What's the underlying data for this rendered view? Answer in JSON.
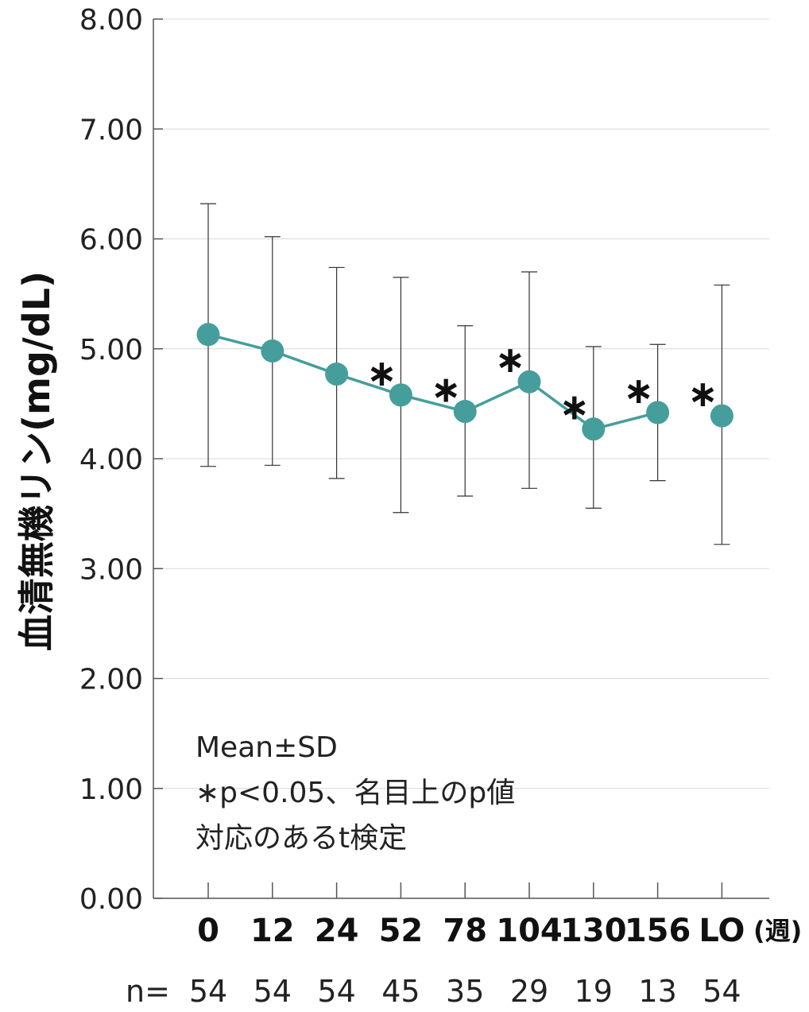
{
  "chart_data": {
    "type": "line",
    "ylabel": "血清無機リン(mg/dL)",
    "ylim": [
      0,
      8
    ],
    "yticks": [
      "0.00",
      "1.00",
      "2.00",
      "3.00",
      "4.00",
      "5.00",
      "6.00",
      "7.00",
      "8.00"
    ],
    "categories": [
      "0",
      "12",
      "24",
      "52",
      "78",
      "104",
      "130",
      "156",
      "LO"
    ],
    "x_unit": "(週)",
    "n_label": "n=",
    "n_values": [
      "54",
      "54",
      "54",
      "45",
      "35",
      "29",
      "19",
      "13",
      "54"
    ],
    "series": [
      {
        "values": [
          5.13,
          4.98,
          4.77,
          4.58,
          4.43,
          4.7,
          4.27,
          4.42,
          4.39
        ],
        "sd_upper": [
          6.32,
          6.02,
          5.74,
          5.65,
          5.21,
          5.7,
          5.02,
          5.04,
          5.58
        ],
        "sd_lower": [
          3.93,
          3.94,
          3.82,
          3.51,
          3.66,
          3.73,
          3.55,
          3.8,
          3.22
        ],
        "significant": [
          false,
          false,
          false,
          true,
          true,
          true,
          true,
          true,
          true
        ],
        "color": "#459e9c"
      }
    ],
    "annotation_lines": [
      "Mean±SD",
      "∗p<0.05、名目上のp値",
      "対応のあるt検定"
    ],
    "star_symbol": "∗",
    "grid": true
  }
}
